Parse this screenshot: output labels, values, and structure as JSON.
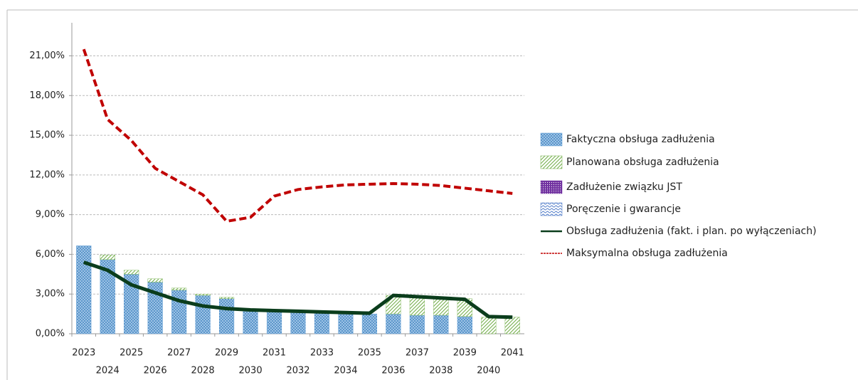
{
  "chart_data": {
    "type": "bar",
    "categories": [
      "2023",
      "2024",
      "2025",
      "2026",
      "2027",
      "2028",
      "2029",
      "2030",
      "2031",
      "2032",
      "2033",
      "2034",
      "2035",
      "2036",
      "2037",
      "2038",
      "2039",
      "2040",
      "2041"
    ],
    "series": [
      {
        "name": "Faktyczna obsługa zadłużenia",
        "color": "#5b9bd5",
        "values": [
          6.65,
          5.6,
          4.5,
          3.9,
          3.3,
          2.9,
          2.65,
          1.75,
          1.7,
          1.65,
          1.6,
          1.55,
          1.5,
          1.5,
          1.4,
          1.4,
          1.3,
          0,
          0
        ]
      },
      {
        "name": "Planowana obsługa zadłużenia",
        "color": "#70ad47",
        "values": [
          0,
          0.35,
          0.3,
          0.25,
          0.15,
          0.1,
          0.1,
          0,
          0,
          0,
          0,
          0,
          0,
          1.4,
          1.45,
          1.35,
          1.35,
          1.25,
          1.25
        ]
      },
      {
        "name": "Zadłużenie związku JST",
        "color": "#7030a0",
        "values": [
          0,
          0,
          0,
          0,
          0,
          0,
          0,
          0,
          0,
          0,
          0,
          0,
          0,
          0,
          0,
          0,
          0,
          0,
          0
        ]
      },
      {
        "name": "Poręczenie i gwarancje",
        "color": "#4472c4",
        "values": [
          0,
          0,
          0,
          0,
          0,
          0,
          0,
          0,
          0,
          0,
          0,
          0,
          0,
          0,
          0,
          0,
          0,
          0,
          0
        ]
      },
      {
        "name": "Obsługa zadłużenia (fakt. i plan. po wyłączeniach)",
        "color": "#0b3d1c",
        "type": "line",
        "values": [
          5.4,
          4.8,
          3.7,
          3.1,
          2.5,
          2.1,
          1.9,
          1.8,
          1.75,
          1.7,
          1.65,
          1.6,
          1.55,
          2.9,
          2.8,
          2.7,
          2.6,
          1.3,
          1.25
        ]
      },
      {
        "name": "Maksymalna obsługa zadłużenia",
        "color": "#c00000",
        "type": "line",
        "dashed": true,
        "values": [
          21.5,
          16.2,
          14.6,
          12.5,
          11.5,
          10.5,
          8.5,
          8.8,
          10.4,
          10.9,
          11.1,
          11.25,
          11.3,
          11.35,
          11.3,
          11.2,
          11.0,
          10.8,
          10.6
        ]
      }
    ],
    "stacked": true,
    "ylim": [
      0,
      23.5
    ],
    "yticks": [
      {
        "value": 0,
        "label": "0,00%"
      },
      {
        "value": 3,
        "label": "3,00%"
      },
      {
        "value": 6,
        "label": "6,00%"
      },
      {
        "value": 9,
        "label": "9,00%"
      },
      {
        "value": 12,
        "label": "12,00%"
      },
      {
        "value": 15,
        "label": "15,00%"
      },
      {
        "value": 18,
        "label": "18,00%"
      },
      {
        "value": 21,
        "label": "21,00%"
      }
    ],
    "grid": true,
    "legend": "right"
  }
}
